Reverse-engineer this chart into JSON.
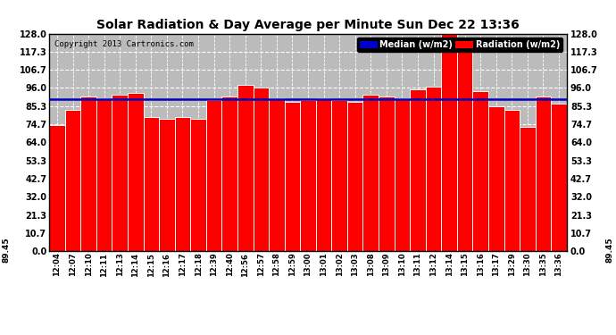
{
  "title": "Solar Radiation & Day Average per Minute Sun Dec 22 13:36",
  "copyright": "Copyright 2013 Cartronics.com",
  "median_value": 89.45,
  "yticks": [
    0.0,
    10.7,
    21.3,
    32.0,
    42.7,
    53.3,
    64.0,
    74.7,
    85.3,
    96.0,
    106.7,
    117.3,
    128.0
  ],
  "ylim": [
    0,
    128.0
  ],
  "bar_color": "#FF0000",
  "bar_edge_color": "#FFFFFF",
  "median_color": "#0000BB",
  "bg_color": "#FFFFFF",
  "plot_bg_color": "#BBBBBB",
  "grid_color": "#FFFFFF",
  "legend_median_bg": "#0000CC",
  "legend_radiation_bg": "#FF0000",
  "labels": [
    "12:04",
    "12:07",
    "12:10",
    "12:11",
    "12:13",
    "12:14",
    "12:15",
    "12:16",
    "12:17",
    "12:18",
    "12:39",
    "12:40",
    "12:56",
    "12:57",
    "12:58",
    "12:59",
    "13:00",
    "13:01",
    "13:02",
    "13:03",
    "13:08",
    "13:09",
    "13:10",
    "13:11",
    "13:12",
    "13:14",
    "13:15",
    "13:16",
    "13:17",
    "13:29",
    "13:30",
    "13:35",
    "13:36"
  ],
  "values": [
    74.0,
    83.0,
    91.0,
    90.0,
    92.0,
    93.0,
    79.0,
    78.0,
    79.0,
    78.0,
    89.0,
    91.0,
    98.0,
    96.0,
    90.0,
    88.0,
    89.0,
    90.0,
    89.0,
    88.0,
    92.0,
    91.0,
    90.0,
    95.0,
    97.0,
    130.0,
    118.0,
    94.0,
    85.0,
    83.0,
    73.0,
    91.0,
    87.0
  ]
}
